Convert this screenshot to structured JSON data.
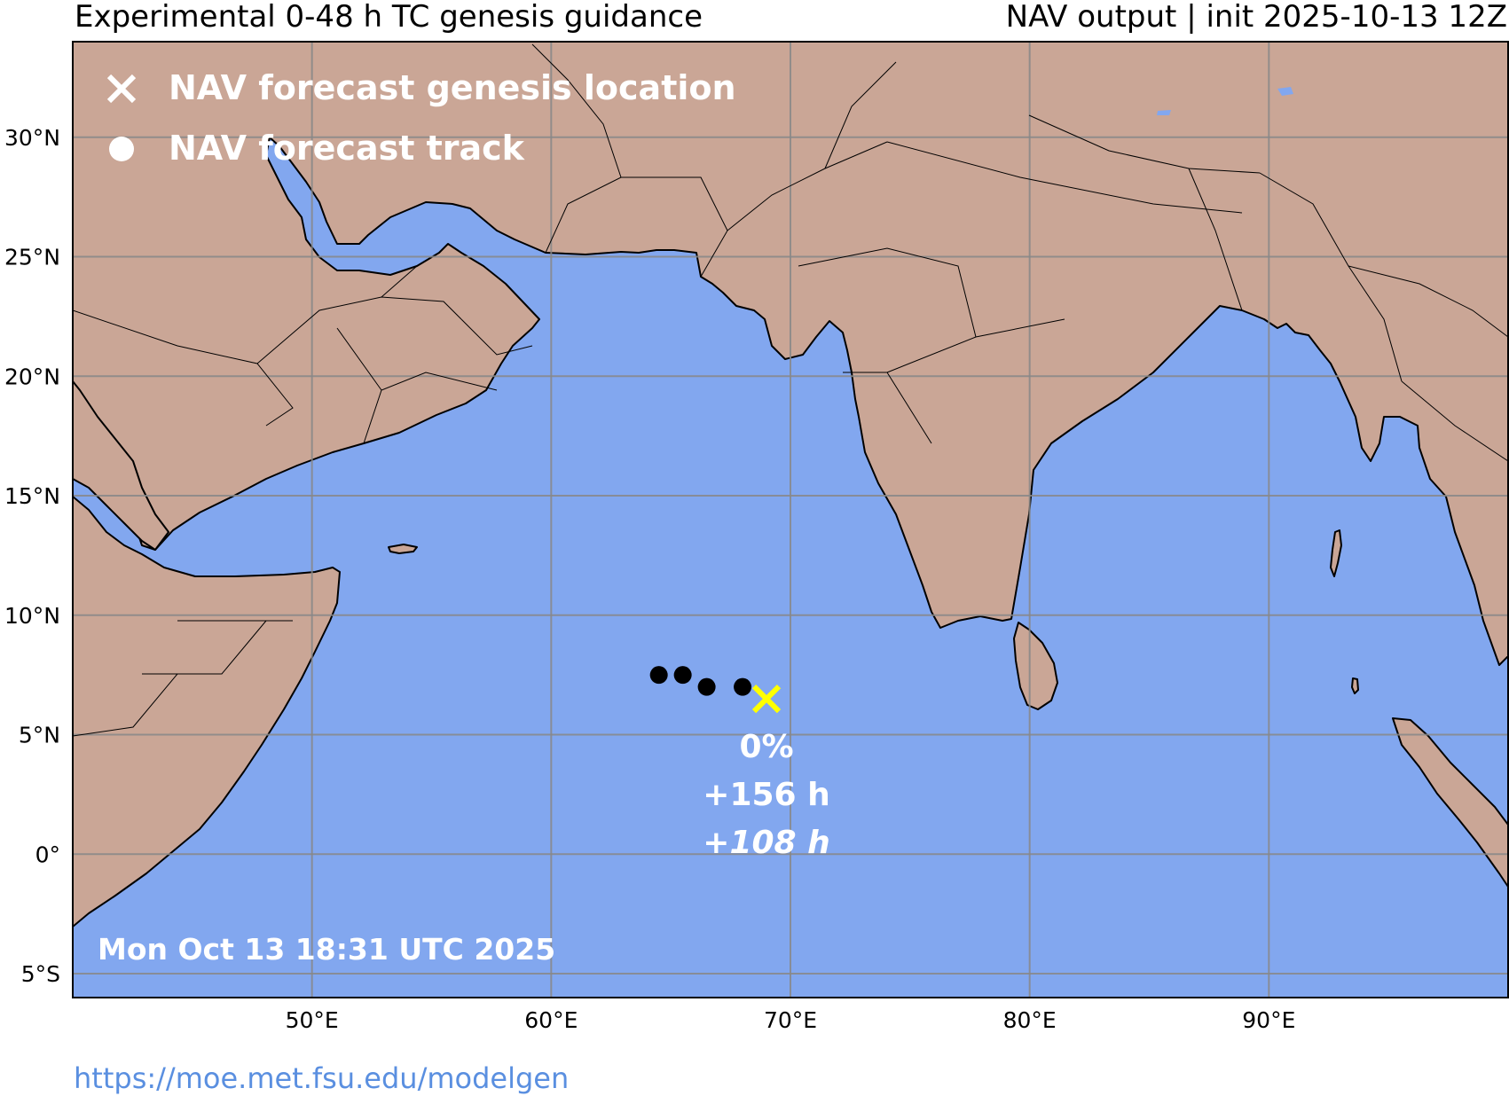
{
  "header": {
    "title_left": "Experimental 0-48 h TC genesis guidance",
    "title_right": "NAV output | init 2025-10-13 12Z"
  },
  "map": {
    "ocean_color": "#82a7ef",
    "land_color": "#caa696",
    "extent": {
      "lon_min": 40,
      "lon_max": 100,
      "lat_min": -6,
      "lat_max": 34
    },
    "lat_ticks": [
      {
        "value": 30,
        "label": "30°N"
      },
      {
        "value": 25,
        "label": "25°N"
      },
      {
        "value": 20,
        "label": "20°N"
      },
      {
        "value": 15,
        "label": "15°N"
      },
      {
        "value": 10,
        "label": "10°N"
      },
      {
        "value": 5,
        "label": "5°N"
      },
      {
        "value": 0,
        "label": "0°"
      },
      {
        "value": -5,
        "label": "5°S"
      }
    ],
    "lon_ticks": [
      {
        "value": 50,
        "label": "50°E"
      },
      {
        "value": 60,
        "label": "60°E"
      },
      {
        "value": 70,
        "label": "70°E"
      },
      {
        "value": 80,
        "label": "80°E"
      },
      {
        "value": 90,
        "label": "90°E"
      }
    ]
  },
  "legend": {
    "genesis_label": "NAV forecast genesis location",
    "track_label": "NAV forecast track"
  },
  "forecast": {
    "genesis": {
      "lon": 69.0,
      "lat": 6.5,
      "color": "#ffff00"
    },
    "track": [
      {
        "lon": 64.5,
        "lat": 7.5
      },
      {
        "lon": 65.5,
        "lat": 7.5
      },
      {
        "lon": 66.5,
        "lat": 7.0
      },
      {
        "lon": 68.0,
        "lat": 7.0
      }
    ],
    "probability": "0%",
    "lead_time_1": "+156 h",
    "lead_time_2": "+108 h"
  },
  "timestamp": "Mon Oct 13 18:31 UTC 2025",
  "footer_url": "https://moe.met.fsu.edu/modelgen"
}
